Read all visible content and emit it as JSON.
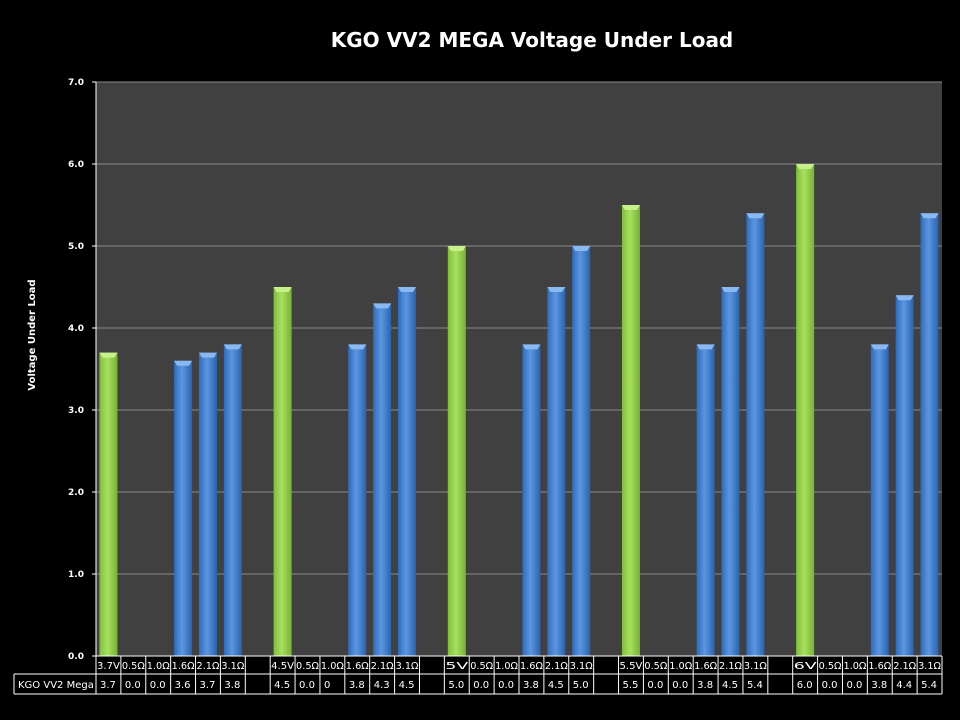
{
  "chart_data": {
    "type": "bar",
    "title": "KGO VV2 MEGA Voltage Under Load",
    "xlabel": "",
    "ylabel": "Voltage Under Load",
    "ylim": [
      0,
      7
    ],
    "yticks": [
      "0.0",
      "1.0",
      "2.0",
      "3.0",
      "4.0",
      "5.0",
      "6.0",
      "7.0"
    ],
    "grid": true,
    "series_name": "KGO VV2 Mega",
    "categories": [
      "3.7V",
      "0.5Ω",
      "1.0Ω",
      "1.6Ω",
      "2.1Ω",
      "3.1Ω",
      "",
      "4.5V",
      "0.5Ω",
      "1.0Ω",
      "1.6Ω",
      "2.1Ω",
      "3.1Ω",
      "",
      "5V",
      "0.5Ω",
      "1.0Ω",
      "1.6Ω",
      "2.1Ω",
      "3.1Ω",
      "",
      "5.5V",
      "0.5Ω",
      "1.0Ω",
      "1.6Ω",
      "2.1Ω",
      "3.1Ω",
      "",
      "6V",
      "0.5Ω",
      "1.0Ω",
      "1.6Ω",
      "2.1Ω",
      "3.1Ω"
    ],
    "values": [
      3.7,
      0.0,
      0.0,
      3.6,
      3.7,
      3.8,
      null,
      4.5,
      0.0,
      0,
      3.8,
      4.3,
      4.5,
      null,
      5.0,
      0.0,
      0.0,
      3.8,
      4.5,
      5.0,
      null,
      5.5,
      0.0,
      0.0,
      3.8,
      4.5,
      5.4,
      null,
      6.0,
      0.0,
      0.0,
      3.8,
      4.4,
      5.4
    ],
    "value_labels": [
      "3.7",
      "0.0",
      "0.0",
      "3.6",
      "3.7",
      "3.8",
      "",
      "4.5",
      "0.0",
      "0",
      "3.8",
      "4.3",
      "4.5",
      "",
      "5.0",
      "0.0",
      "0.0",
      "3.8",
      "4.5",
      "5.0",
      "",
      "5.5",
      "0.0",
      "0.0",
      "3.8",
      "4.5",
      "5.4",
      "",
      "6.0",
      "0.0",
      "0.0",
      "3.8",
      "4.4",
      "5.4"
    ],
    "colors": {
      "setpoint": "#92d050",
      "load": "#3f7fd0",
      "plot_bg": "#404040",
      "grid": "#8a8a8a"
    }
  }
}
